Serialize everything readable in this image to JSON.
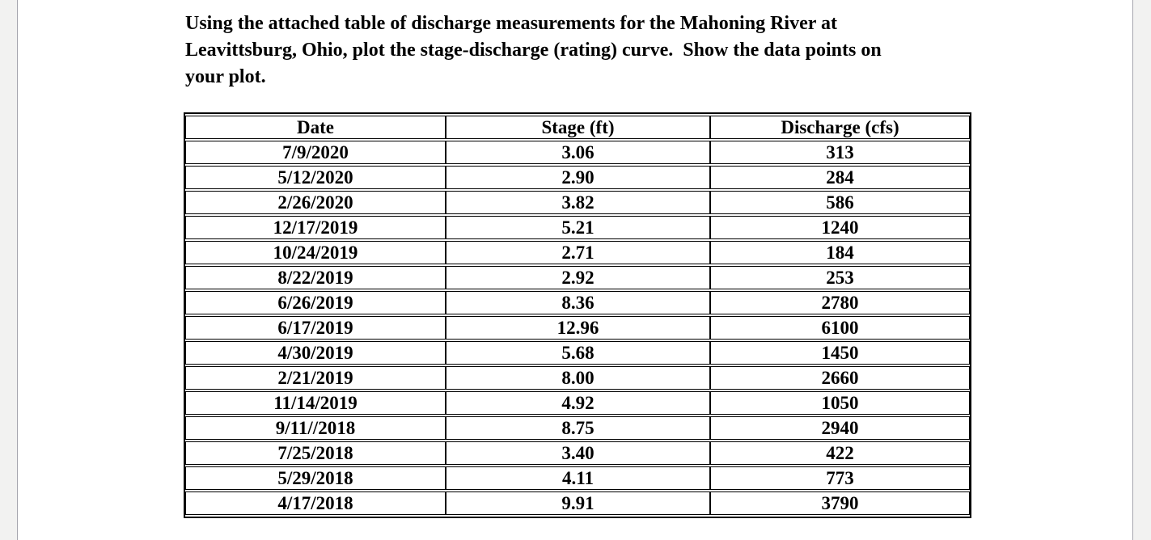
{
  "page": {
    "background_color": "#f2f2f1",
    "paper_color": "#ffffff",
    "edge_line_color": "#a6a6ae",
    "text_color": "#000000"
  },
  "prompt": {
    "full_text": "Using the attached table of discharge measurements for the Mahoning River at Leavittsburg, Ohio, plot the stage-discharge (rating) curve.  Show the data points on your plot.",
    "lines": [
      "Using the attached table of discharge measurements for the Mahoning River at",
      "Leavittsburg, Ohio, plot the stage-discharge (rating) curve.  Show the data points on",
      "your plot."
    ]
  },
  "table": {
    "headers": [
      "Date",
      "Stage (ft)",
      "Discharge (cfs)"
    ],
    "rows": [
      [
        "7/9/2020",
        "3.06",
        "313"
      ],
      [
        "5/12/2020",
        "2.90",
        "284"
      ],
      [
        "2/26/2020",
        "3.82",
        "586"
      ],
      [
        "12/17/2019",
        "5.21",
        "1240"
      ],
      [
        "10/24/2019",
        "2.71",
        "184"
      ],
      [
        "8/22/2019",
        "2.92",
        "253"
      ],
      [
        "6/26/2019",
        "8.36",
        "2780"
      ],
      [
        "6/17/2019",
        "12.96",
        "6100"
      ],
      [
        "4/30/2019",
        "5.68",
        "1450"
      ],
      [
        "2/21/2019",
        "8.00",
        "2660"
      ],
      [
        "11/14/2019",
        "4.92",
        "1050"
      ],
      [
        "9/11//2018",
        "8.75",
        "2940"
      ],
      [
        "7/25/2018",
        "3.40",
        "422"
      ],
      [
        "5/29/2018",
        "4.11",
        "773"
      ],
      [
        "4/17/2018",
        "9.91",
        "3790"
      ]
    ]
  }
}
